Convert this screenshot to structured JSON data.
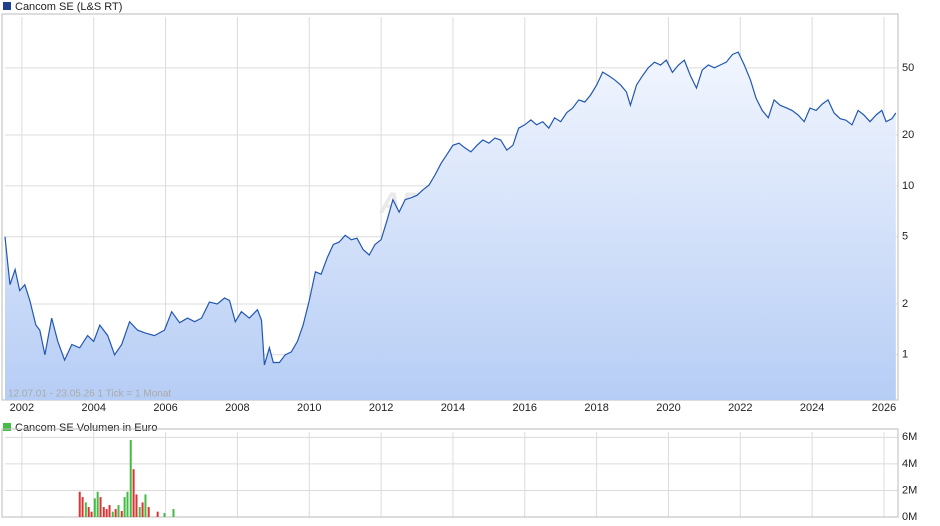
{
  "chart_data": [
    {
      "type": "area",
      "log_y": true,
      "grid": true,
      "legend": "Cancom SE (L&S RT)",
      "annotation": "12.07.01 - 23.05.26   1 Tick = 1 Monat",
      "watermark": "ARIVA.DE",
      "xlim": [
        2001.53,
        2026.39
      ],
      "xticks": [
        2002,
        2004,
        2006,
        2008,
        2010,
        2012,
        2014,
        2016,
        2018,
        2020,
        2022,
        2024,
        2026
      ],
      "ylim": [
        0.54,
        100
      ],
      "yticks": [
        1,
        2,
        5,
        10,
        20,
        50
      ],
      "x": [
        2001.53,
        2001.61,
        2001.67,
        2001.81,
        2001.94,
        2002.08,
        2002.22,
        2002.39,
        2002.5,
        2002.64,
        2002.83,
        2003.0,
        2003.19,
        2003.39,
        2003.61,
        2003.83,
        2004.0,
        2004.17,
        2004.39,
        2004.58,
        2004.78,
        2005.0,
        2005.22,
        2005.42,
        2005.69,
        2005.97,
        2006.17,
        2006.39,
        2006.61,
        2006.81,
        2007.0,
        2007.22,
        2007.44,
        2007.64,
        2007.78,
        2007.94,
        2008.11,
        2008.33,
        2008.56,
        2008.67,
        2008.75,
        2008.89,
        2009.0,
        2009.17,
        2009.33,
        2009.5,
        2009.67,
        2009.83,
        2010.0,
        2010.17,
        2010.33,
        2010.5,
        2010.67,
        2010.83,
        2011.0,
        2011.17,
        2011.33,
        2011.5,
        2011.67,
        2011.83,
        2012.0,
        2012.17,
        2012.33,
        2012.5,
        2012.67,
        2012.83,
        2013.0,
        2013.17,
        2013.33,
        2013.5,
        2013.67,
        2013.83,
        2014.0,
        2014.17,
        2014.33,
        2014.5,
        2014.67,
        2014.83,
        2015.0,
        2015.17,
        2015.33,
        2015.5,
        2015.67,
        2015.83,
        2016.0,
        2016.17,
        2016.33,
        2016.5,
        2016.67,
        2016.83,
        2017.0,
        2017.17,
        2017.33,
        2017.5,
        2017.67,
        2017.83,
        2018.0,
        2018.17,
        2018.33,
        2018.5,
        2018.67,
        2018.83,
        2018.94,
        2019.11,
        2019.28,
        2019.44,
        2019.61,
        2019.78,
        2019.94,
        2020.11,
        2020.28,
        2020.44,
        2020.61,
        2020.78,
        2020.94,
        2021.11,
        2021.28,
        2021.44,
        2021.61,
        2021.78,
        2021.94,
        2022.11,
        2022.28,
        2022.44,
        2022.61,
        2022.78,
        2022.94,
        2023.11,
        2023.28,
        2023.44,
        2023.61,
        2023.78,
        2023.94,
        2024.11,
        2024.28,
        2024.44,
        2024.61,
        2024.78,
        2024.94,
        2025.11,
        2025.28,
        2025.44,
        2025.61,
        2025.78,
        2025.94,
        2026.06,
        2026.22,
        2026.33
      ],
      "series": [
        {
          "color": "#2257b0",
          "values": [
            5.0,
            3.4,
            2.6,
            3.2,
            2.4,
            2.6,
            2.1,
            1.5,
            1.4,
            1.0,
            1.65,
            1.2,
            0.93,
            1.15,
            1.1,
            1.3,
            1.2,
            1.5,
            1.3,
            1.0,
            1.15,
            1.57,
            1.4,
            1.35,
            1.3,
            1.4,
            1.8,
            1.55,
            1.65,
            1.57,
            1.65,
            2.05,
            2.0,
            2.17,
            2.1,
            1.57,
            1.8,
            1.65,
            1.85,
            1.6,
            0.87,
            1.1,
            0.9,
            0.9,
            1.0,
            1.04,
            1.2,
            1.5,
            2.1,
            3.1,
            3.0,
            3.75,
            4.5,
            4.65,
            5.1,
            4.8,
            4.9,
            4.2,
            3.9,
            4.5,
            4.8,
            6.3,
            8.3,
            7.0,
            8.3,
            8.5,
            8.8,
            9.5,
            10.1,
            11.6,
            13.6,
            15.3,
            17.4,
            17.9,
            16.8,
            15.9,
            17.4,
            18.7,
            17.9,
            19.2,
            18.7,
            16.3,
            17.4,
            22,
            23,
            24.6,
            23,
            24,
            22,
            25.3,
            24,
            27.2,
            28.9,
            32.3,
            31.4,
            34.5,
            39.5,
            47.2,
            45,
            42.5,
            39.5,
            36,
            30,
            39.5,
            45,
            50,
            54,
            52,
            55.6,
            47,
            52,
            55.6,
            45,
            38,
            48.5,
            52,
            50,
            52,
            54,
            60,
            62,
            52,
            42.5,
            33,
            28,
            25.3,
            32.3,
            30,
            29,
            28,
            26.3,
            24,
            28.9,
            28,
            30.5,
            32.3,
            27,
            25,
            24.5,
            23,
            28,
            26.3,
            24,
            26.3,
            28,
            24,
            25,
            27
          ]
        }
      ]
    },
    {
      "type": "bar",
      "grid": true,
      "legend": "Cancom SE Volumen in Euro",
      "legend_color": "#44bb44",
      "xlim": [
        2001.53,
        2026.39
      ],
      "ylim": [
        0,
        6400000
      ],
      "yticks": [
        {
          "value": 0,
          "label": "0M"
        },
        {
          "value": 2000000,
          "label": "2M"
        },
        {
          "value": 4000000,
          "label": "4M"
        },
        {
          "value": 6000000,
          "label": "6M"
        }
      ],
      "x": [
        2003.61,
        2003.69,
        2003.78,
        2003.86,
        2003.94,
        2004.03,
        2004.11,
        2004.19,
        2004.28,
        2004.36,
        2004.44,
        2004.53,
        2004.61,
        2004.69,
        2004.78,
        2004.86,
        2004.94,
        2005.03,
        2005.11,
        2005.19,
        2005.28,
        2005.36,
        2005.44,
        2005.53,
        2005.78,
        2005.97,
        2006.22
      ],
      "values": [
        1900000,
        1500000,
        1100000,
        750000,
        400000,
        1400000,
        1900000,
        1500000,
        750000,
        600000,
        900000,
        400000,
        600000,
        900000,
        450000,
        1500000,
        1900000,
        5800000,
        3600000,
        1700000,
        750000,
        1100000,
        1700000,
        750000,
        400000,
        300000,
        600000
      ],
      "colors": [
        "#d33",
        "#d33",
        "#4b4",
        "#d33",
        "#d33",
        "#4b4",
        "#4b4",
        "#d33",
        "#d33",
        "#d33",
        "#d33",
        "#4b4",
        "#d33",
        "#4b4",
        "#d33",
        "#4b4",
        "#4b4",
        "#4b4",
        "#d33",
        "#d33",
        "#4b4",
        "#d33",
        "#4b4",
        "#d33",
        "#d33",
        "#4b4",
        "#4b4"
      ]
    }
  ]
}
